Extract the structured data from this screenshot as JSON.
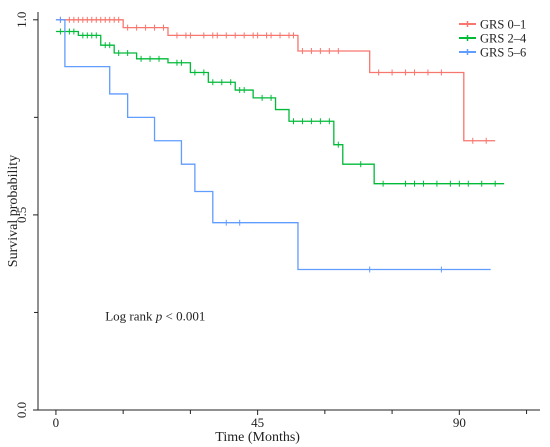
{
  "chart_data": {
    "type": "line",
    "subtype": "kaplan-meier",
    "xlabel": "Time (Months)",
    "ylabel": "Survival probability",
    "xlim": [
      -4,
      108
    ],
    "ylim": [
      0,
      1.02
    ],
    "xticks": [
      0,
      45,
      90
    ],
    "xtick_labels": [
      "0",
      "45",
      "90"
    ],
    "xticks_minor": [
      15,
      30,
      60,
      75,
      105
    ],
    "yticks": [
      0,
      0.5,
      1
    ],
    "ytick_labels": [
      "0.0",
      "0.5",
      "1.0"
    ],
    "yticks_minor": [
      0.25,
      0.75
    ],
    "grid": false,
    "legend_position": "top-right",
    "annotation": {
      "prefix": "Log rank ",
      "italic": "p",
      "suffix": " < 0.001",
      "at": [
        11,
        0.23
      ]
    },
    "series": [
      {
        "name": "GRS 0–1",
        "color": "#f8766d",
        "steps": [
          [
            0,
            1.0
          ],
          [
            15,
            0.98
          ],
          [
            25,
            0.96
          ],
          [
            54,
            0.92
          ],
          [
            70,
            0.865
          ],
          [
            91,
            0.69
          ],
          [
            98,
            0.69
          ]
        ],
        "censor": [
          1,
          3,
          4,
          5,
          6,
          7,
          8,
          9,
          10,
          11,
          12,
          13,
          14,
          16,
          18,
          20,
          22,
          24,
          27,
          29,
          30,
          33,
          35,
          36,
          38,
          40,
          42,
          44,
          45,
          47,
          48,
          50,
          52,
          53,
          55,
          57,
          59,
          61,
          63,
          72,
          75,
          78,
          80,
          83,
          86,
          93,
          96
        ]
      },
      {
        "name": "GRS 2–4",
        "color": "#00ba38",
        "steps": [
          [
            0,
            0.97
          ],
          [
            5,
            0.96
          ],
          [
            10,
            0.935
          ],
          [
            13,
            0.915
          ],
          [
            18,
            0.9
          ],
          [
            25,
            0.89
          ],
          [
            30,
            0.865
          ],
          [
            34,
            0.84
          ],
          [
            40,
            0.82
          ],
          [
            44,
            0.8
          ],
          [
            49,
            0.77
          ],
          [
            52,
            0.74
          ],
          [
            62,
            0.68
          ],
          [
            64,
            0.63
          ],
          [
            71,
            0.58
          ],
          [
            100,
            0.58
          ]
        ],
        "censor": [
          1,
          2,
          3,
          4,
          6,
          7,
          8,
          9,
          11,
          12,
          14,
          16,
          19,
          21,
          23,
          27,
          28,
          31,
          33,
          35,
          37,
          39,
          41,
          42,
          46,
          48,
          53,
          55,
          57,
          59,
          61,
          63,
          68,
          73,
          78,
          80,
          82,
          85,
          88,
          90,
          92,
          95,
          98
        ]
      },
      {
        "name": "GRS 5–6",
        "color": "#619cff",
        "steps": [
          [
            0,
            1.0
          ],
          [
            2,
            0.88
          ],
          [
            12,
            0.81
          ],
          [
            16,
            0.75
          ],
          [
            22,
            0.69
          ],
          [
            28,
            0.63
          ],
          [
            31,
            0.56
          ],
          [
            35,
            0.48
          ],
          [
            54,
            0.36
          ],
          [
            97,
            0.36
          ]
        ],
        "censor": [
          1,
          38,
          41,
          70,
          86
        ]
      }
    ]
  }
}
